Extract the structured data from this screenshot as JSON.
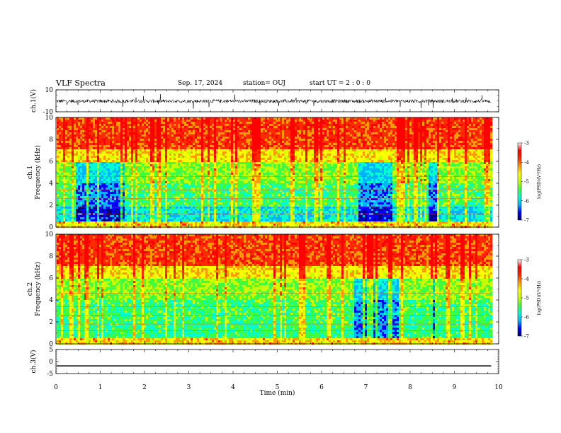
{
  "header": {
    "title": "VLF Spectra",
    "date": "Sep. 17, 2024",
    "station": "station= OUJ",
    "start_ut": "start  UT =   2  : 0   : 0"
  },
  "colors": {
    "spectrogram_scale": [
      "#00007a",
      "#0000ff",
      "#00b4ff",
      "#00ffd0",
      "#40ff40",
      "#c8ff00",
      "#ffff00",
      "#ff9a00",
      "#ff2a00",
      "#ff0000"
    ],
    "waveform": "#000000",
    "background": "#ffffff"
  },
  "chart_data": [
    {
      "type": "line",
      "title": "",
      "ylabel": "ch.1(V)",
      "xlabel": "",
      "xlim": [
        0,
        10
      ],
      "ylim": [
        -10,
        10
      ],
      "y_ticks": [
        "10",
        "-10"
      ],
      "description_series": "ch.1 waveform, fluctuating roughly between -2 and 2 V with spikes",
      "x": [
        0,
        9.83
      ],
      "y": [
        0,
        0
      ]
    },
    {
      "type": "heatmap",
      "ylabel_line1": "ch.1",
      "ylabel_line2": "Frequency (kHz)",
      "xlim": [
        0,
        10
      ],
      "ylim": [
        0,
        10
      ],
      "y_ticks": [
        "0",
        "2",
        "4",
        "6",
        "8",
        "10"
      ],
      "data_extent_x": [
        0,
        9.83
      ],
      "colorbar": {
        "label": "log(PSD)(V²/Hz)",
        "range": [
          -7,
          -3
        ],
        "ticks": [
          "-3",
          "-4",
          "-5",
          "-6",
          "-7"
        ]
      }
    },
    {
      "type": "heatmap",
      "ylabel_line1": "ch.2",
      "ylabel_line2": "Frequency (kHz)",
      "xlim": [
        0,
        10
      ],
      "ylim": [
        0,
        10
      ],
      "y_ticks": [
        "0",
        "2",
        "4",
        "6",
        "8",
        "10"
      ],
      "data_extent_x": [
        0,
        9.83
      ],
      "colorbar": {
        "label": "log(PSD)(V²/Hz)",
        "range": [
          -7,
          -3
        ],
        "ticks": [
          "-3",
          "-4",
          "-5",
          "-6",
          "-7"
        ]
      }
    },
    {
      "type": "line",
      "ylabel": "ch.3(V)",
      "xlabel": "Time  (min)",
      "xlim": [
        0,
        10
      ],
      "ylim": [
        -5,
        5
      ],
      "y_ticks": [
        "5",
        "0",
        "-5"
      ],
      "x": [
        0,
        9.83
      ],
      "y": [
        -1.8,
        -1.8
      ],
      "x_ticks": [
        "0",
        "1",
        "2",
        "3",
        "4",
        "5",
        "6",
        "7",
        "8",
        "9",
        "10"
      ]
    }
  ]
}
